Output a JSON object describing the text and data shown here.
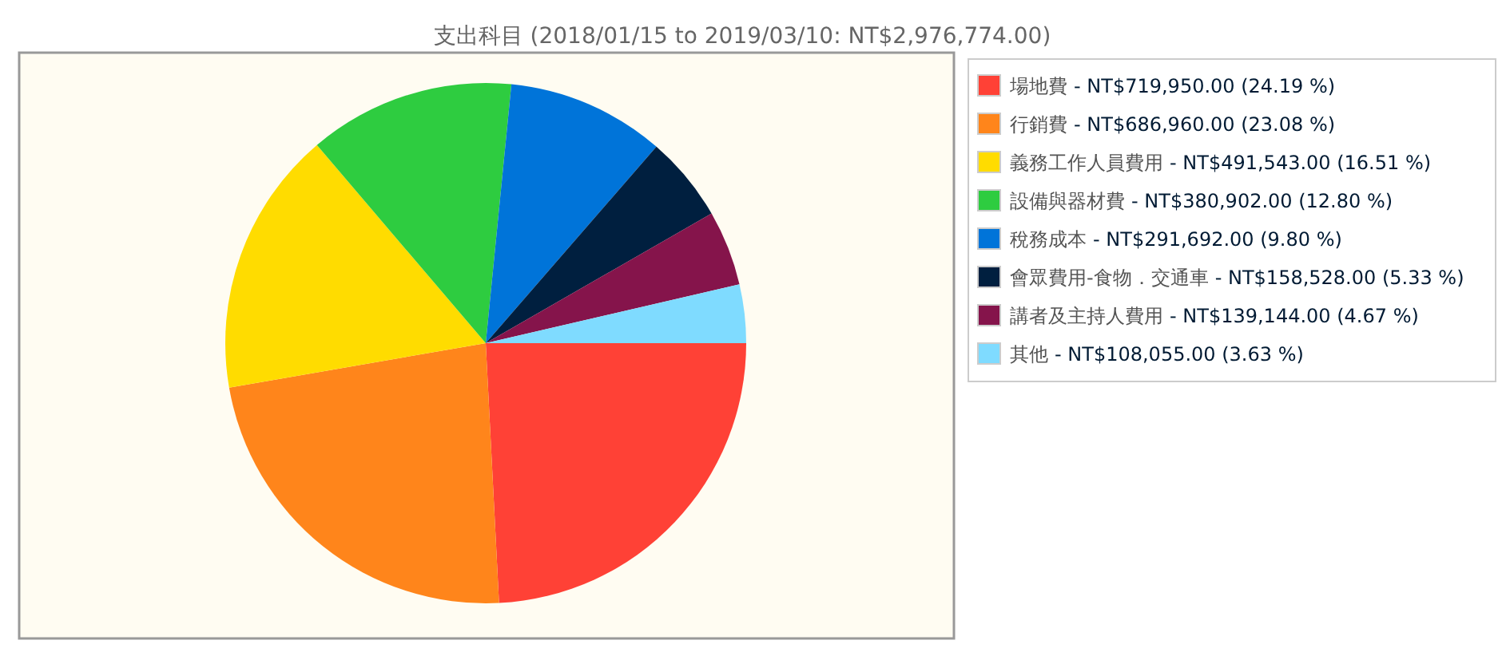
{
  "chart_data": {
    "type": "pie",
    "title": "支出科目 (2018/01/15 to 2019/03/10: NT$2,976,774.00)",
    "categories": [
      "場地費",
      "行銷費",
      "義務工作人員費用",
      "設備與器材費",
      "稅務成本",
      "會眾費用-食物．交通車",
      "講者及主持人費用",
      "其他"
    ],
    "values": [
      719950,
      686960,
      491543,
      380902,
      291692,
      158528,
      139144,
      108055
    ],
    "value_labels": [
      "- NT$719,950.00 (24.19 %)",
      "- NT$686,960.00 (23.08 %)",
      "- NT$491,543.00 (16.51 %)",
      "- NT$380,902.00 (12.80 %)",
      "- NT$291,692.00 (9.80 %)",
      "- NT$158,528.00 (5.33 %)",
      "- NT$139,144.00 (4.67 %)",
      "- NT$108,055.00 (3.63 %)"
    ],
    "colors": [
      "#ff4136",
      "#ff851b",
      "#ffdc00",
      "#2ecc40",
      "#0074d9",
      "#001f3f",
      "#85144b",
      "#7fdbff"
    ],
    "legend": "right"
  }
}
